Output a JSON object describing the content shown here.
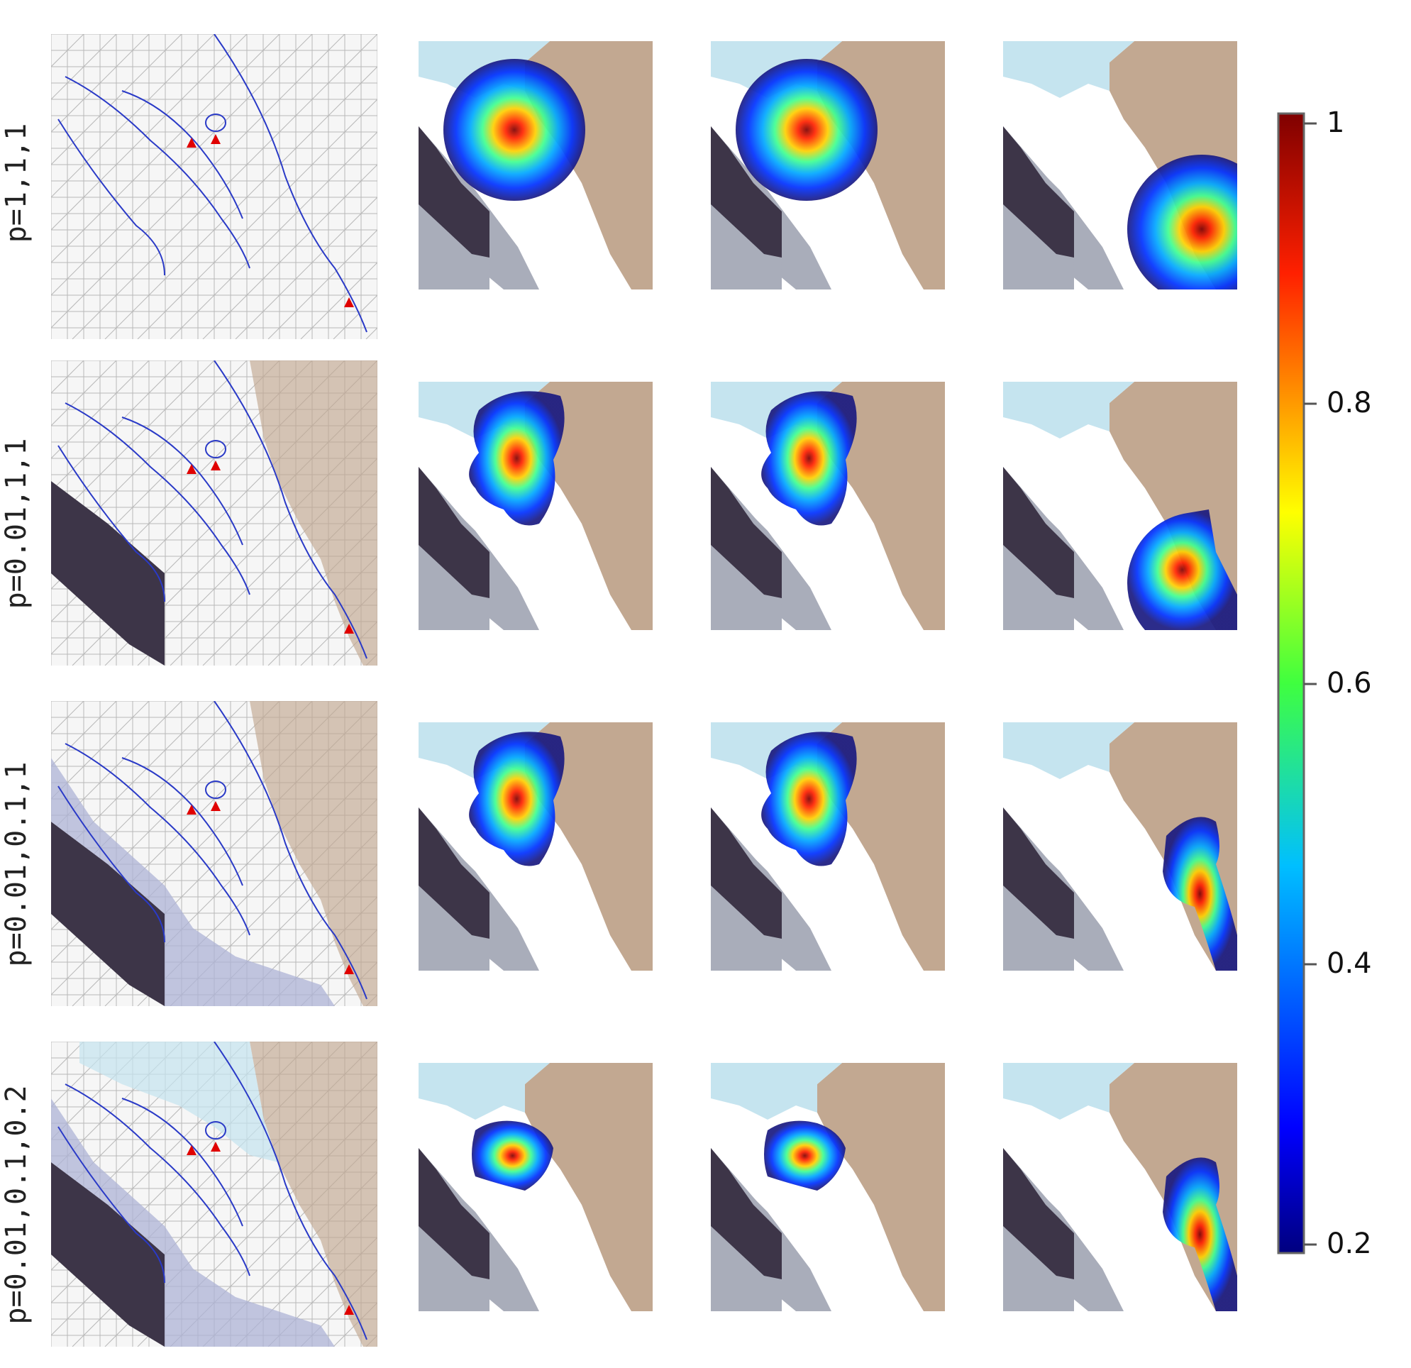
{
  "rows": [
    {
      "label": "p=1,1,1",
      "extent": "full",
      "marker_offset": 0,
      "spots": [
        {
          "type": "disk"
        },
        {
          "type": "disk"
        },
        {
          "type": "disk-small"
        }
      ]
    },
    {
      "label": "p=0.01,1,1",
      "extent": "land",
      "marker_offset": 0,
      "spots": [
        {
          "type": "blob"
        },
        {
          "type": "blob"
        },
        {
          "type": "disk-cut"
        }
      ]
    },
    {
      "label": "p=0.01,0.1,1",
      "extent": "coast",
      "marker_offset": 0,
      "spots": [
        {
          "type": "blob"
        },
        {
          "type": "blob"
        },
        {
          "type": "strip"
        }
      ]
    },
    {
      "label": "p=0.01,0.1,0.2",
      "extent": "tight",
      "marker_offset": 0,
      "spots": [
        {
          "type": "small"
        },
        {
          "type": "small"
        },
        {
          "type": "strip"
        }
      ]
    }
  ],
  "colorbar": {
    "ticks": [
      "1",
      "0.8",
      "0.6",
      "0.4",
      "0.2"
    ],
    "colormap": "jet",
    "range": [
      0.2,
      1
    ]
  },
  "colors": {
    "land": "#c2a891",
    "deep_water": "#3d3548",
    "shallow_water": "#a9adba",
    "mid_water": "#aeb3d6",
    "light_water": "#c5e4ef",
    "coastline": "#2a3ac7",
    "marker": "#e00000",
    "mesh": "#b8b8b8"
  }
}
